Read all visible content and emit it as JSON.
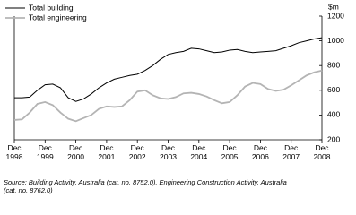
{
  "chart_data": {
    "type": "line",
    "y_unit_label": "$m",
    "categories": [
      "Dec 1998",
      null,
      null,
      null,
      "Dec 1999",
      null,
      null,
      null,
      "Dec 2000",
      null,
      null,
      null,
      "Dec 2001",
      null,
      null,
      null,
      "Dec 2002",
      null,
      null,
      null,
      "Dec 2003",
      null,
      null,
      null,
      "Dec 2004",
      null,
      null,
      null,
      "Dec 2005",
      null,
      null,
      null,
      "Dec 2006",
      null,
      null,
      null,
      "Dec 2007",
      null,
      null,
      null,
      "Dec 2008"
    ],
    "series": [
      {
        "name": "Total building",
        "color": "#000000",
        "values": [
          540,
          540,
          545,
          600,
          645,
          650,
          620,
          540,
          510,
          530,
          570,
          620,
          660,
          690,
          705,
          720,
          730,
          760,
          800,
          850,
          890,
          905,
          915,
          940,
          935,
          920,
          905,
          910,
          925,
          930,
          915,
          905,
          910,
          915,
          920,
          940,
          960,
          985,
          1000,
          1015,
          1025
        ]
      },
      {
        "name": "Total engineering",
        "color": "#b4b4b4",
        "values": [
          360,
          365,
          420,
          490,
          505,
          480,
          420,
          370,
          350,
          375,
          400,
          450,
          470,
          465,
          470,
          520,
          590,
          600,
          560,
          535,
          530,
          545,
          575,
          580,
          570,
          550,
          520,
          495,
          505,
          560,
          630,
          660,
          650,
          610,
          595,
          605,
          640,
          680,
          720,
          745,
          760
        ]
      }
    ],
    "ylim": [
      200,
      1200
    ],
    "yticks": [
      200,
      400,
      600,
      800,
      1000,
      1200
    ],
    "y_axis_side": "right",
    "legend": "top-left",
    "source": "Source: Building Activity, Australia (cat. no. 8752.0), Engineering Construction Activity, Australia (cat. no. 8762.0)"
  }
}
